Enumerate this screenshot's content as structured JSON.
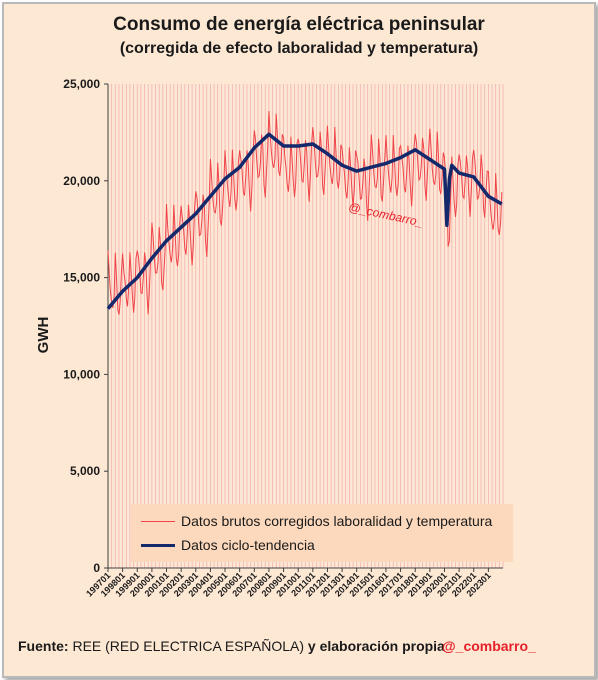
{
  "title": "Consumo de energía eléctrica peninsular",
  "subtitle": "(corregida de efecto laboralidad y temperatura)",
  "footer": {
    "source_label": "Fuente:",
    "source_text": "REE (RED ELECTRICA ESPAÑOLA)",
    "source_suffix": "y elaboración propia",
    "handle": "@_combarro_"
  },
  "watermark": "@_combarro_",
  "colors": {
    "raw": "#f0444a",
    "trend": "#13296b",
    "background": "#fde8d4",
    "legend_bg": "#fcd9bd"
  },
  "chart_data": {
    "type": "line",
    "ylabel": "GWH",
    "ylim": [
      0,
      25000
    ],
    "yticks": [
      0,
      5000,
      10000,
      15000,
      20000,
      25000
    ],
    "ytick_labels": [
      "0",
      "5,000",
      "10,000",
      "15,000",
      "20,000",
      "25,000"
    ],
    "xtick_labels": [
      "199701",
      "199801",
      "199901",
      "200001",
      "200101",
      "200201",
      "200301",
      "200401",
      "200501",
      "200601",
      "200701",
      "200801",
      "200901",
      "201001",
      "201101",
      "201201",
      "201301",
      "201401",
      "201501",
      "201601",
      "201701",
      "201801",
      "201901",
      "202001",
      "202101",
      "202201",
      "202301"
    ],
    "x_start": "199701",
    "x_end": "202401",
    "grid": "vertical",
    "legend_position": "bottom-inside",
    "series": [
      {
        "name": "Datos brutos corregidos laboralidad y temperatura",
        "kind": "raw-monthly",
        "annual_level": [
          14200,
          14700,
          15200,
          15900,
          16700,
          17400,
          18100,
          19000,
          19700,
          20400,
          21000,
          21400,
          20600,
          21000,
          20900,
          20700,
          20300,
          20000,
          20300,
          20400,
          20600,
          20900,
          20500,
          19500,
          20200,
          19800,
          18300
        ],
        "seasonal_amplitude": 2100
      },
      {
        "name": "Datos ciclo-tendencia",
        "kind": "trend",
        "points": [
          [
            "199701",
            13400
          ],
          [
            "199801",
            14300
          ],
          [
            "199901",
            15000
          ],
          [
            "200001",
            16000
          ],
          [
            "200101",
            16900
          ],
          [
            "200201",
            17600
          ],
          [
            "200301",
            18300
          ],
          [
            "200401",
            19200
          ],
          [
            "200501",
            20100
          ],
          [
            "200601",
            20700
          ],
          [
            "200701",
            21700
          ],
          [
            "200801",
            22400
          ],
          [
            "200901",
            21800
          ],
          [
            "201001",
            21800
          ],
          [
            "201101",
            21900
          ],
          [
            "201201",
            21400
          ],
          [
            "201301",
            20800
          ],
          [
            "201401",
            20500
          ],
          [
            "201501",
            20700
          ],
          [
            "201601",
            20900
          ],
          [
            "201701",
            21200
          ],
          [
            "201801",
            21600
          ],
          [
            "201901",
            21100
          ],
          [
            "202001",
            20600
          ],
          [
            "202003",
            17700
          ],
          [
            "202005",
            20100
          ],
          [
            "202007",
            20800
          ],
          [
            "202101",
            20400
          ],
          [
            "202201",
            20200
          ],
          [
            "202301",
            19200
          ],
          [
            "202312",
            18800
          ]
        ]
      }
    ]
  }
}
